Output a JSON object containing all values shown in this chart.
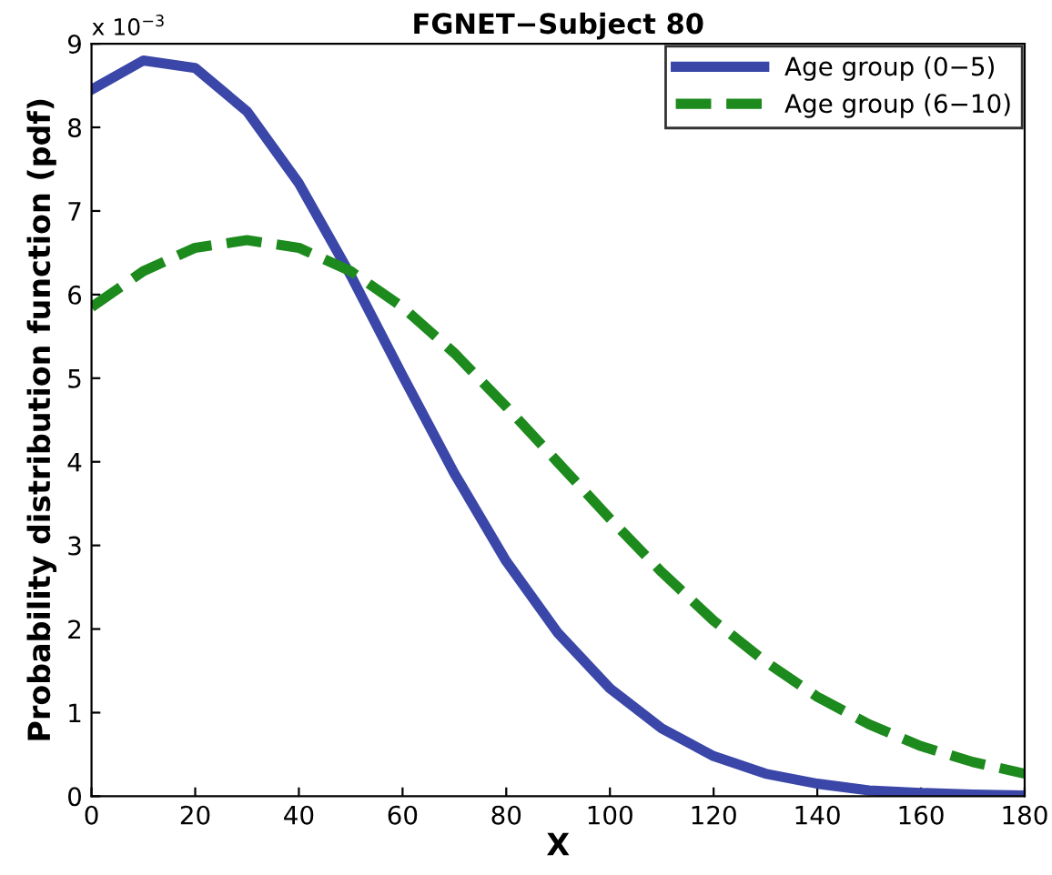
{
  "chart_data": {
    "type": "line",
    "title": "FGNET−Subject 80",
    "xlabel": "X",
    "ylabel": "Probability distribution function (pdf)",
    "x": [
      0,
      10,
      20,
      30,
      40,
      50,
      60,
      70,
      80,
      90,
      100,
      110,
      120,
      130,
      140,
      150,
      160,
      170,
      180
    ],
    "series": [
      {
        "name": "Age group (0−5)",
        "color": "#3a47a8",
        "line_style": "solid",
        "values": [
          8.45,
          8.8,
          8.71,
          8.19,
          7.33,
          6.23,
          5.03,
          3.86,
          2.81,
          1.95,
          1.29,
          0.81,
          0.48,
          0.27,
          0.15,
          0.07,
          0.04,
          0.02,
          0.01
        ]
      },
      {
        "name": "Age group (6−10)",
        "color": "#1d8a1d",
        "line_style": "dashed",
        "values": [
          5.85,
          6.28,
          6.56,
          6.65,
          6.56,
          6.28,
          5.85,
          5.3,
          4.66,
          3.99,
          3.32,
          2.68,
          2.1,
          1.61,
          1.19,
          0.86,
          0.6,
          0.41,
          0.27
        ]
      }
    ],
    "xlim": [
      0,
      180
    ],
    "xticks": [
      0,
      20,
      40,
      60,
      80,
      100,
      120,
      140,
      160,
      180
    ],
    "ylim": [
      0,
      9
    ],
    "yticks": [
      0,
      1,
      2,
      3,
      4,
      5,
      6,
      7,
      8,
      9
    ],
    "annotations": [
      "x 10$^{−3}$"
    ],
    "legend": "top right",
    "grid": false
  }
}
